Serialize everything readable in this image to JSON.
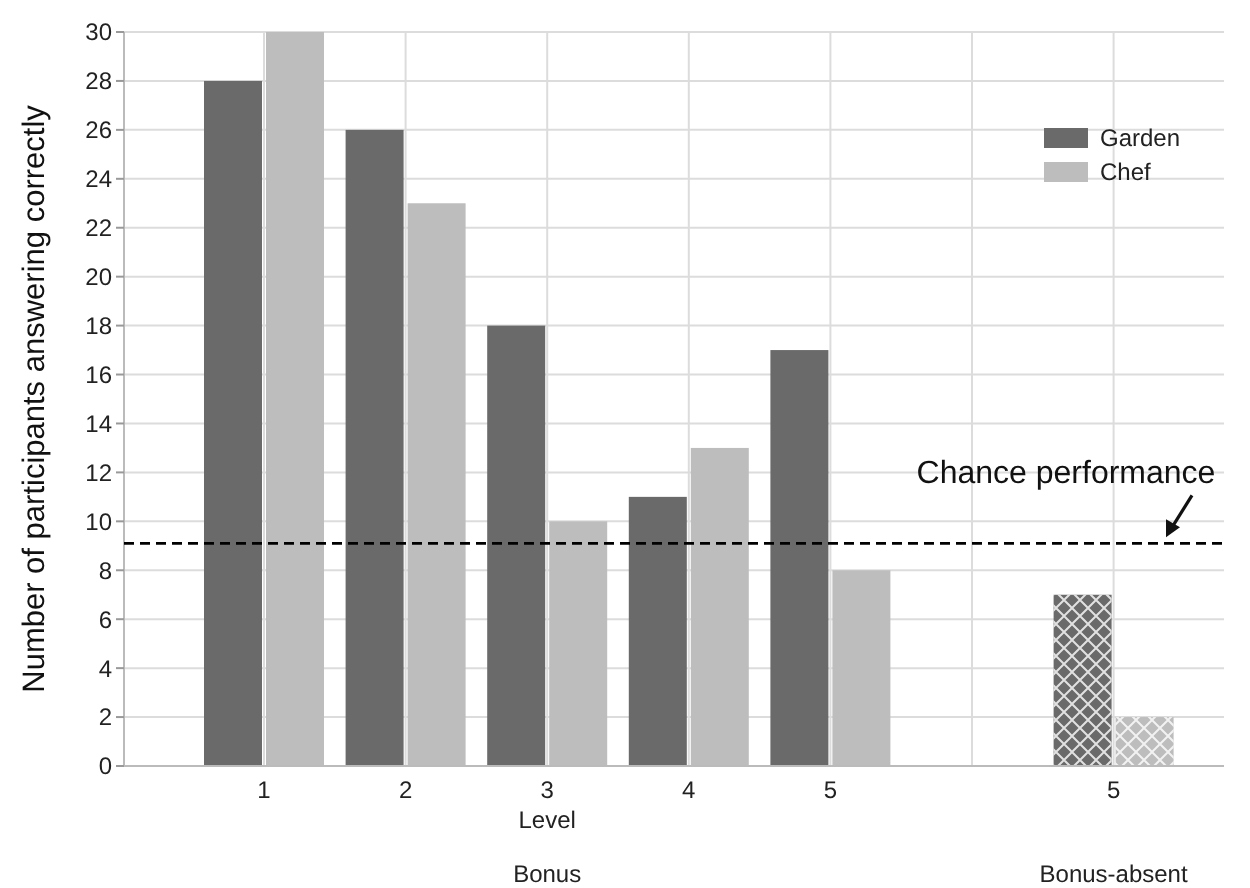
{
  "chart_data": {
    "type": "bar",
    "xlabel": "Level",
    "ylabel": "Number of participants answering correctly",
    "categories": [
      "1",
      "2",
      "3",
      "4",
      "5",
      null,
      "5"
    ],
    "series": [
      {
        "name": "Garden",
        "color": "#6a6a6a",
        "values": [
          28,
          26,
          18,
          11,
          17,
          null,
          7
        ]
      },
      {
        "name": "Chef",
        "color": "#bdbdbd",
        "values": [
          30,
          23,
          10,
          13,
          8,
          null,
          2
        ]
      }
    ],
    "ylim": [
      0,
      30
    ],
    "yticks": [
      0,
      2,
      4,
      6,
      8,
      10,
      12,
      14,
      16,
      18,
      20,
      22,
      24,
      26,
      28,
      30
    ],
    "grid": true,
    "legend": "top right",
    "ref_lines": [
      {
        "axis": "y",
        "value": 9.1,
        "label": "Chance performance",
        "line_style": "dashed",
        "color": "#000000"
      }
    ],
    "annotations": [
      "Bonus",
      "Bonus-absent"
    ]
  }
}
